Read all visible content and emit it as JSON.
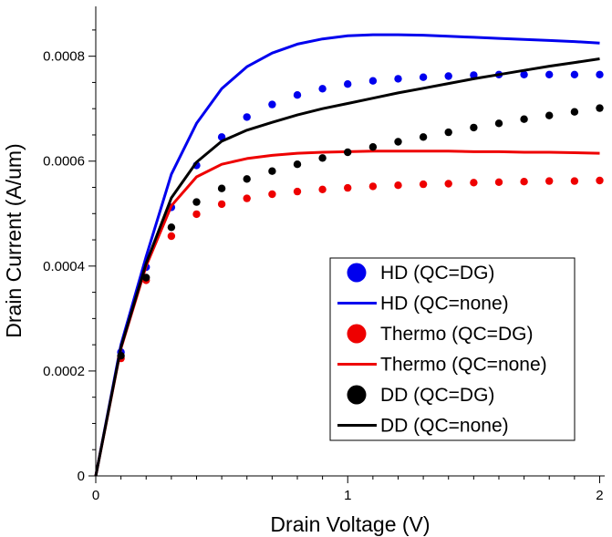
{
  "colors": {
    "hd": "#0000ee",
    "thermo": "#ee0000",
    "dd": "#000000",
    "axis": "#000000",
    "background": "#ffffff"
  },
  "chart_data": {
    "type": "line",
    "title": "",
    "xlabel": "Drain Voltage (V)",
    "ylabel": "Drain Current (A/um)",
    "xlim": [
      0,
      2.02
    ],
    "ylim": [
      0,
      0.000895
    ],
    "x_ticks": [
      {
        "value": 0,
        "label": "0"
      },
      {
        "value": 1,
        "label": "1"
      },
      {
        "value": 2,
        "label": "2"
      }
    ],
    "y_ticks": [
      {
        "value": 0,
        "label": "0"
      },
      {
        "value": 0.0002,
        "label": "0.0002"
      },
      {
        "value": 0.0004,
        "label": "0.0004"
      },
      {
        "value": 0.0006,
        "label": "0.0006"
      },
      {
        "value": 0.0008,
        "label": "0.0008"
      }
    ],
    "grid": false,
    "legend_position": "lower-right",
    "series": [
      {
        "name": "HD (QC=DG)",
        "kind": "scatter",
        "color_key": "hd",
        "x": [
          0.1,
          0.2,
          0.3,
          0.4,
          0.5,
          0.6,
          0.7,
          0.8,
          0.9,
          1.0,
          1.1,
          1.2,
          1.3,
          1.4,
          1.5,
          1.6,
          1.7,
          1.8,
          1.9,
          2.0
        ],
        "y": [
          0.000236,
          0.000398,
          0.000512,
          0.000592,
          0.000646,
          0.000684,
          0.000708,
          0.000726,
          0.000738,
          0.000747,
          0.000753,
          0.000757,
          0.00076,
          0.000762,
          0.000764,
          0.000765,
          0.000765,
          0.000765,
          0.000765,
          0.000765
        ]
      },
      {
        "name": "HD (QC=none)",
        "kind": "line",
        "color_key": "hd",
        "x": [
          0,
          0.1,
          0.2,
          0.3,
          0.4,
          0.5,
          0.6,
          0.7,
          0.8,
          0.9,
          1.0,
          1.1,
          1.2,
          1.3,
          1.4,
          1.5,
          1.6,
          1.7,
          1.8,
          1.9,
          2.0
        ],
        "y": [
          0,
          0.00025,
          0.000418,
          0.000575,
          0.000672,
          0.000738,
          0.00078,
          0.000806,
          0.000823,
          0.000833,
          0.000839,
          0.000841,
          0.000841,
          0.00084,
          0.000838,
          0.000836,
          0.000834,
          0.000832,
          0.00083,
          0.000828,
          0.000825
        ]
      },
      {
        "name": "Thermo (QC=DG)",
        "kind": "scatter",
        "color_key": "thermo",
        "x": [
          0.1,
          0.2,
          0.3,
          0.4,
          0.5,
          0.6,
          0.7,
          0.8,
          0.9,
          1.0,
          1.1,
          1.2,
          1.3,
          1.4,
          1.5,
          1.6,
          1.7,
          1.8,
          1.9,
          2.0
        ],
        "y": [
          0.000224,
          0.000373,
          0.000457,
          0.000499,
          0.000518,
          0.000529,
          0.000537,
          0.000542,
          0.000546,
          0.000549,
          0.000552,
          0.000554,
          0.000556,
          0.000557,
          0.000559,
          0.00056,
          0.000561,
          0.000562,
          0.000562,
          0.000563
        ]
      },
      {
        "name": "Thermo (QC=none)",
        "kind": "line",
        "color_key": "thermo",
        "x": [
          0,
          0.1,
          0.2,
          0.3,
          0.4,
          0.5,
          0.6,
          0.7,
          0.8,
          0.9,
          1.0,
          1.1,
          1.2,
          1.3,
          1.4,
          1.5,
          1.6,
          1.7,
          1.8,
          1.9,
          2.0
        ],
        "y": [
          0,
          0.000243,
          0.0004,
          0.000515,
          0.00057,
          0.000594,
          0.000605,
          0.000611,
          0.000615,
          0.000617,
          0.000618,
          0.000619,
          0.000619,
          0.000619,
          0.000619,
          0.000618,
          0.000618,
          0.000617,
          0.000617,
          0.000616,
          0.000615
        ]
      },
      {
        "name": "DD (QC=DG)",
        "kind": "scatter",
        "color_key": "dd",
        "x": [
          0.1,
          0.2,
          0.3,
          0.4,
          0.5,
          0.6,
          0.7,
          0.8,
          0.9,
          1.0,
          1.1,
          1.2,
          1.3,
          1.4,
          1.5,
          1.6,
          1.7,
          1.8,
          1.9,
          2.0
        ],
        "y": [
          0.000229,
          0.000378,
          0.000474,
          0.000522,
          0.000548,
          0.000566,
          0.000581,
          0.000594,
          0.000606,
          0.000617,
          0.000627,
          0.000637,
          0.000646,
          0.000655,
          0.000664,
          0.000672,
          0.00068,
          0.000687,
          0.000694,
          0.000701
        ]
      },
      {
        "name": "DD (QC=none)",
        "kind": "line",
        "color_key": "dd",
        "x": [
          0,
          0.1,
          0.2,
          0.3,
          0.4,
          0.5,
          0.6,
          0.7,
          0.8,
          0.9,
          1.0,
          1.1,
          1.2,
          1.3,
          1.4,
          1.5,
          1.6,
          1.7,
          1.8,
          1.9,
          2.0
        ],
        "y": [
          0,
          0.000245,
          0.000405,
          0.00053,
          0.000598,
          0.000638,
          0.000659,
          0.000674,
          0.000688,
          0.0007,
          0.00071,
          0.00072,
          0.00073,
          0.000739,
          0.000748,
          0.000757,
          0.000765,
          0.000773,
          0.000781,
          0.000788,
          0.000795
        ]
      }
    ]
  }
}
